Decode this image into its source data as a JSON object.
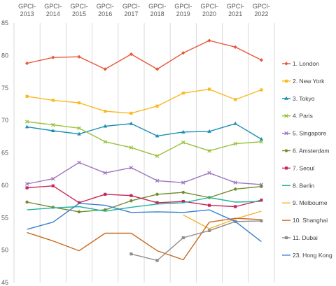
{
  "chart_data": {
    "type": "line",
    "title": "",
    "xlabel": "",
    "ylabel": "",
    "x_position": "top",
    "categories": [
      "GPCI-2013",
      "GPCI-2014",
      "GPCI-2015",
      "GPCI-2016",
      "GPCI-2017",
      "GPCI-2018",
      "GPCI-2019",
      "GPCI-2020",
      "GPCI-2021",
      "GPCI-2022"
    ],
    "ylim": [
      45,
      85
    ],
    "yticks": [
      45,
      50,
      55,
      60,
      65,
      70,
      75,
      80,
      85
    ],
    "grid": "vertical",
    "legend": "right",
    "series": [
      {
        "name": "1. London",
        "color": "#e8563a",
        "marker": "diamond",
        "values": [
          78.8,
          79.7,
          79.8,
          77.9,
          80.2,
          77.9,
          80.4,
          82.3,
          81.3,
          79.3
        ]
      },
      {
        "name": "2. New York",
        "color": "#f9b920",
        "marker": "square",
        "values": [
          73.7,
          73.1,
          72.7,
          71.4,
          71.1,
          72.2,
          74.2,
          74.8,
          73.2,
          74.7
        ]
      },
      {
        "name": "3. Tokyo",
        "color": "#1b8fb8",
        "marker": "triangle",
        "values": [
          69.0,
          68.4,
          67.9,
          69.1,
          69.5,
          67.6,
          68.2,
          68.3,
          69.5,
          67.1
        ]
      },
      {
        "name": "4. Paris",
        "color": "#99c13c",
        "marker": "x",
        "values": [
          69.8,
          69.3,
          68.8,
          66.7,
          65.8,
          64.5,
          66.6,
          65.3,
          66.4,
          66.7
        ]
      },
      {
        "name": "5. Singapore",
        "color": "#9e77c0",
        "marker": "x",
        "values": [
          60.2,
          61.0,
          63.5,
          61.9,
          62.7,
          60.7,
          60.4,
          61.9,
          60.4,
          60.1
        ]
      },
      {
        "name": "6. Amsterdam",
        "color": "#6f8d2e",
        "marker": "circle",
        "values": [
          57.4,
          56.6,
          55.9,
          56.2,
          57.6,
          58.6,
          58.9,
          58.1,
          59.4,
          59.8
        ]
      },
      {
        "name": "7. Seoul",
        "color": "#c8265a",
        "marker": "square",
        "values": [
          59.6,
          59.9,
          57.3,
          58.6,
          58.4,
          57.3,
          57.5,
          56.9,
          56.7,
          57.7
        ]
      },
      {
        "name": "8. Berlin",
        "color": "#1fb39b",
        "marker": "none",
        "values": [
          56.2,
          56.5,
          56.7,
          56.0,
          56.6,
          57.1,
          57.3,
          58.1,
          57.4,
          57.5
        ]
      },
      {
        "name": "9. Melbourne",
        "color": "#f7b12e",
        "marker": "none",
        "values": [
          null,
          null,
          null,
          null,
          null,
          null,
          55.4,
          53.3,
          54.8,
          56.0
        ]
      },
      {
        "name": "10. Shanghai",
        "color": "#c86b22",
        "marker": "none",
        "values": [
          52.7,
          51.4,
          49.9,
          52.6,
          52.6,
          49.9,
          48.5,
          54.3,
          54.9,
          54.7
        ]
      },
      {
        "name": "11. Dubai",
        "color": "#8c8c8c",
        "marker": "square",
        "values": [
          null,
          null,
          null,
          null,
          49.4,
          48.4,
          51.9,
          53.0,
          54.4,
          54.5
        ]
      },
      {
        "name": "23. Hong Kong",
        "color": "#3a7fcf",
        "marker": "none",
        "values": [
          53.2,
          54.3,
          57.2,
          56.9,
          55.8,
          55.9,
          55.8,
          56.2,
          54.4,
          51.3
        ]
      }
    ]
  }
}
